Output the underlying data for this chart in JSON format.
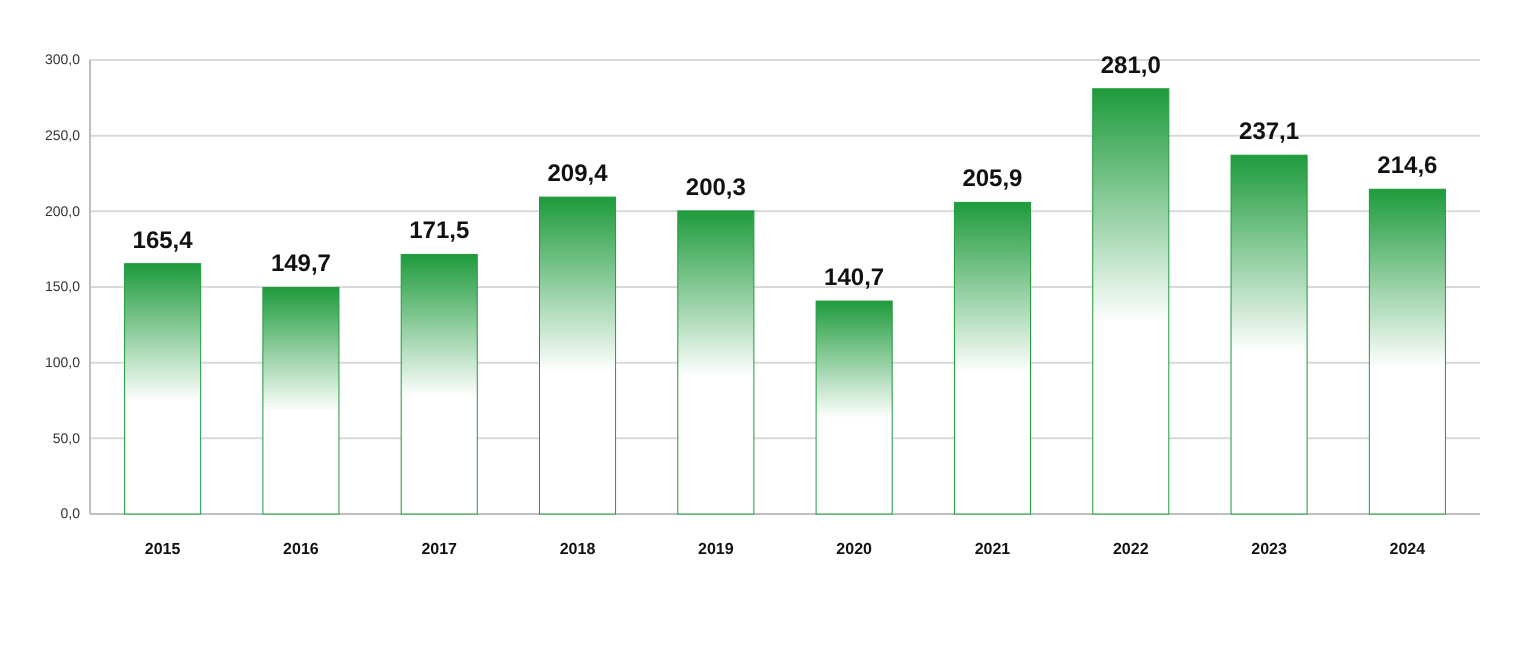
{
  "chart_data": {
    "type": "bar",
    "categories": [
      "2015",
      "2016",
      "2017",
      "2018",
      "2019",
      "2020",
      "2021",
      "2022",
      "2023",
      "2024"
    ],
    "values": [
      165.4,
      149.7,
      171.5,
      209.4,
      200.3,
      140.7,
      205.9,
      281.0,
      237.1,
      214.6
    ],
    "value_labels": [
      "165,4",
      "149,7",
      "171,5",
      "209,4",
      "200,3",
      "140,7",
      "205,9",
      "281,0",
      "237,1",
      "214,6"
    ],
    "color": "#1e9b3c",
    "ylim": [
      0,
      300
    ],
    "yticks": [
      {
        "value": 0,
        "label": "0,0"
      },
      {
        "value": 50,
        "label": "50,0"
      },
      {
        "value": 100,
        "label": "100,0"
      },
      {
        "value": 150,
        "label": "150,0"
      },
      {
        "value": 200,
        "label": "200,0"
      },
      {
        "value": 250,
        "label": "250,0"
      },
      {
        "value": 300,
        "label": "300,0"
      }
    ],
    "grid": true
  }
}
